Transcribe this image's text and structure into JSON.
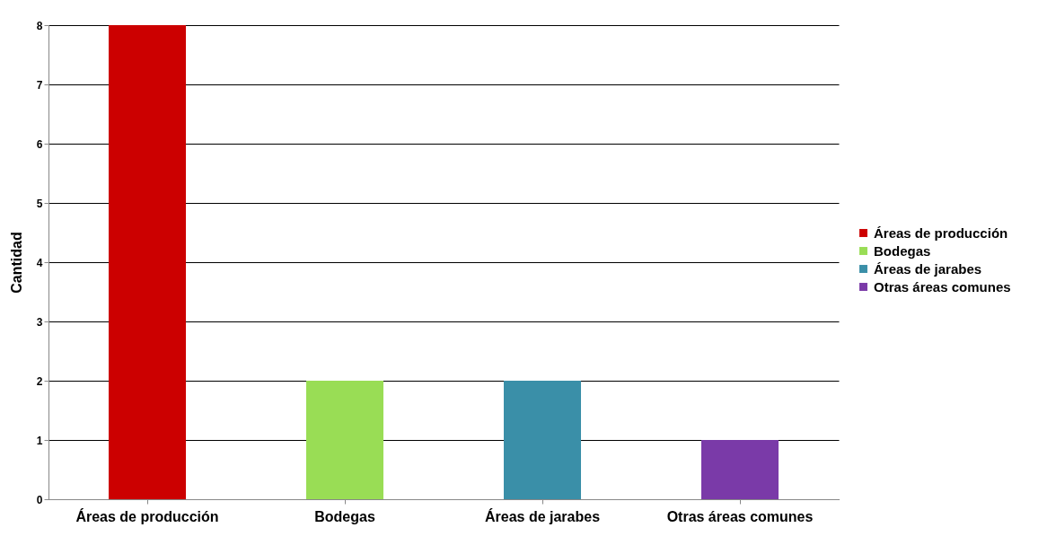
{
  "chart_data": {
    "type": "bar",
    "ylabel": "Cantidad",
    "categories": [
      "Áreas de producción",
      "Bodegas",
      "Áreas de jarabes",
      "Otras áreas comunes"
    ],
    "series": [
      {
        "name": "Áreas de producción",
        "color": "#cc0000",
        "values": [
          8,
          null,
          null,
          null
        ]
      },
      {
        "name": "Bodegas",
        "color": "#99dd55",
        "values": [
          null,
          2,
          null,
          null
        ]
      },
      {
        "name": "Áreas de jarabes",
        "color": "#3a8fa8",
        "values": [
          null,
          null,
          2,
          null
        ]
      },
      {
        "name": "Otras áreas comunes",
        "color": "#7a3aa8",
        "values": [
          null,
          null,
          null,
          1
        ]
      }
    ],
    "ylim": [
      0,
      8
    ],
    "yticks": [
      0,
      1,
      2,
      3,
      4,
      5,
      6,
      7,
      8
    ],
    "grid": "y",
    "legend": "right"
  }
}
